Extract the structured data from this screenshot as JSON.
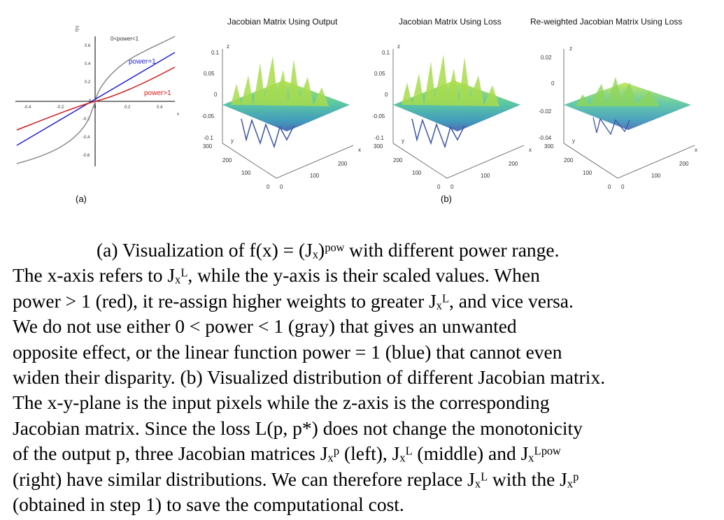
{
  "figure": {
    "panel_a": {
      "label": "(a)",
      "y_axis_label": "f(x)",
      "x_axis_label": "x",
      "x_ticks": [
        "-0.4",
        "-0.2",
        "0",
        "0.2",
        "0.4"
      ],
      "y_ticks": [
        "0.6",
        "0.4",
        "0.2",
        "0",
        "-0.2",
        "-0.4",
        "-0.6"
      ],
      "curve_labels": {
        "gray": "0<power<1",
        "blue": "power=1",
        "red": "power>1"
      },
      "colors": {
        "gray": "#8a8a8a",
        "blue": "#1f1fd6",
        "red": "#d11a1a"
      }
    },
    "panel_b_label": "(b)",
    "surfaces": [
      {
        "title": "Jacobian Matrix Using Output",
        "z_ticks": [
          "0.1",
          "0.05",
          "0",
          "-0.05",
          "-0.1"
        ],
        "y_ticks": [
          "300",
          "200",
          "100",
          "0"
        ],
        "x_ticks": [
          "0",
          "100",
          "200"
        ]
      },
      {
        "title": "Jacobian Matrix Using Loss",
        "z_ticks": [
          "0.1",
          "0.05",
          "0",
          "-0.05",
          "-0.1"
        ],
        "y_ticks": [
          "300",
          "200",
          "100",
          "0"
        ],
        "x_ticks": [
          "0",
          "100",
          "200"
        ]
      },
      {
        "title": "Re-weighted Jacobian Matrix Using Loss",
        "z_ticks": [
          "0.02",
          "0",
          "-0.02",
          "-0.04"
        ],
        "y_ticks": [
          "300",
          "200",
          "100",
          "0"
        ],
        "x_ticks": [
          "0",
          "100",
          "200"
        ]
      }
    ],
    "axis_letters": {
      "z": "z",
      "y": "y",
      "x": "x"
    }
  },
  "caption": {
    "l1": "(a) Visualization of f(x) = (Jₓ)ᵖᵒʷ with different power range.",
    "l2": "The x-axis refers to Jₓᴸ, while the y-axis is their scaled values. When",
    "l3": "power > 1 (red), it re-assign higher weights to greater Jₓᴸ, and vice versa.",
    "l4": "We do not use either 0 < power < 1 (gray) that gives an unwanted",
    "l5": "opposite effect, or the linear function power = 1 (blue) that cannot even",
    "l6": "widen their disparity. (b) Visualized distribution of different Jacobian matrix.",
    "l7": "The x-y-plane is the input pixels while the z-axis is the corresponding",
    "l8": "Jacobian matrix. Since the loss L(p, p*) does not change the monotonicity",
    "l9": "of the output p, three Jacobian matrices Jₓᵖ (left), Jₓᴸ (middle) and Jₓᴸᵖᵒʷ",
    "l10": "(right) have similar distributions. We can therefore replace Jₓᴸ with the Jₓᵖ",
    "l11": "(obtained in step 1) to save the computational cost."
  }
}
